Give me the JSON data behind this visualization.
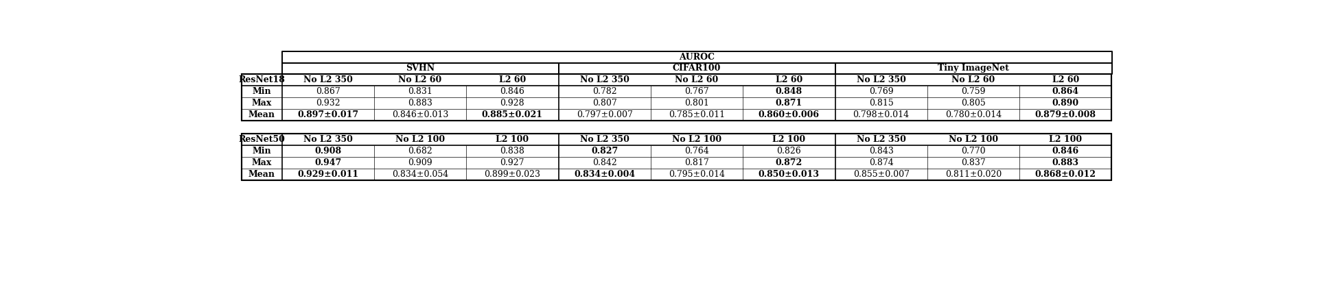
{
  "table1": {
    "header_row": [
      "ResNet18",
      "No L2 350",
      "No L2 60",
      "L2 60",
      "No L2 350",
      "No L2 60",
      "L2 60",
      "No L2 350",
      "No L2 60",
      "L2 60"
    ],
    "rows": [
      [
        "Min",
        "0.867",
        "0.831",
        "0.846",
        "0.782",
        "0.767",
        "0.848",
        "0.769",
        "0.759",
        "0.864"
      ],
      [
        "Max",
        "0.932",
        "0.883",
        "0.928",
        "0.807",
        "0.801",
        "0.871",
        "0.815",
        "0.805",
        "0.890"
      ],
      [
        "Mean",
        "0.897±0.017",
        "0.846±0.013",
        "0.885±0.021",
        "0.797±0.007",
        "0.785±0.011",
        "0.860±0.006",
        "0.798±0.014",
        "0.780±0.014",
        "0.879±0.008"
      ]
    ],
    "bold_header": [
      true,
      true,
      true,
      true,
      true,
      true,
      true,
      true,
      true,
      true
    ],
    "bold_min": [
      false,
      false,
      false,
      false,
      false,
      true,
      false,
      false,
      true
    ],
    "bold_max": [
      false,
      false,
      false,
      false,
      false,
      true,
      false,
      false,
      true
    ],
    "bold_mean": [
      true,
      false,
      true,
      false,
      false,
      true,
      false,
      false,
      true
    ]
  },
  "table2": {
    "header_row": [
      "ResNet50",
      "No L2 350",
      "No L2 100",
      "L2 100",
      "No L2 350",
      "No L2 100",
      "L2 100",
      "No L2 350",
      "No L2 100",
      "L2 100"
    ],
    "rows": [
      [
        "Min",
        "0.908",
        "0.682",
        "0.838",
        "0.827",
        "0.764",
        "0.826",
        "0.843",
        "0.770",
        "0.846"
      ],
      [
        "Max",
        "0.947",
        "0.909",
        "0.927",
        "0.842",
        "0.817",
        "0.872",
        "0.874",
        "0.837",
        "0.883"
      ],
      [
        "Mean",
        "0.929±0.011",
        "0.834±0.054",
        "0.899±0.023",
        "0.834±0.004",
        "0.795±0.014",
        "0.850±0.013",
        "0.855±0.007",
        "0.811±0.020",
        "0.868±0.012"
      ]
    ],
    "bold_header": [
      true,
      true,
      true,
      true,
      true,
      true,
      true,
      true,
      true,
      true
    ],
    "bold_min": [
      true,
      false,
      false,
      true,
      false,
      false,
      false,
      false,
      true
    ],
    "bold_max": [
      true,
      false,
      false,
      false,
      false,
      true,
      false,
      false,
      true
    ],
    "bold_mean": [
      true,
      false,
      false,
      true,
      false,
      true,
      false,
      false,
      true
    ]
  },
  "col_groups": [
    "SVHN",
    "CIFAR100",
    "Tiny ImageNet"
  ],
  "auroc_label": "AUROC",
  "bg_color": "#ffffff",
  "text_color": "#000000",
  "font_size": 9.0,
  "header_font_size": 9.0
}
